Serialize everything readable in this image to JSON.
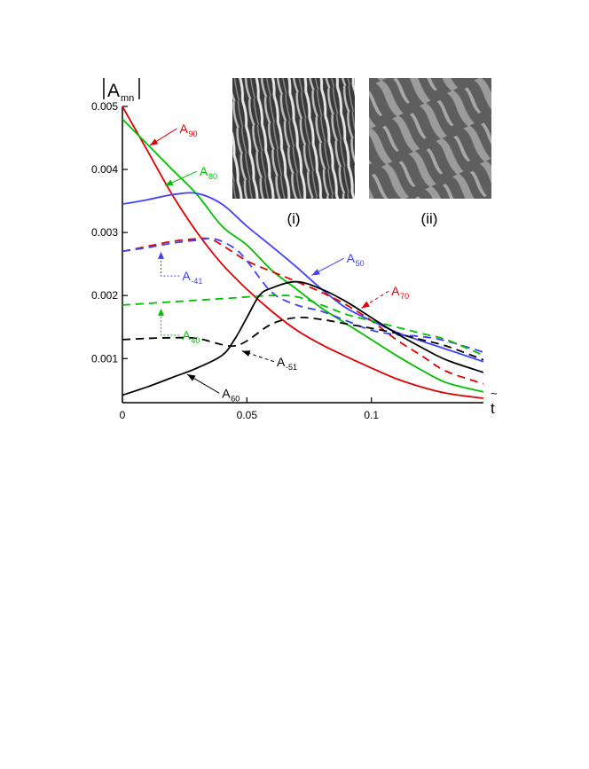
{
  "chart_data": {
    "type": "line",
    "ylabel_main": "A",
    "ylabel_sub": "mn",
    "xlabel_main": "t",
    "xlabel_accent": "~",
    "xlim": [
      0,
      0.145
    ],
    "ylim": [
      0.0003,
      0.005
    ],
    "xticks": [
      {
        "value": 0,
        "label": "0"
      },
      {
        "value": 0.05,
        "label": "0.05"
      },
      {
        "value": 0.1,
        "label": "0.1"
      }
    ],
    "yticks": [
      {
        "value": 0.001,
        "label": "0.001"
      },
      {
        "value": 0.002,
        "label": "0.002"
      },
      {
        "value": 0.003,
        "label": "0.003"
      },
      {
        "value": 0.004,
        "label": "0.004"
      },
      {
        "value": 0.005,
        "label": "0.005"
      }
    ],
    "series": [
      {
        "id": "a90-red",
        "color": "#e00000",
        "dash": "solid",
        "points": [
          [
            0,
            0.005
          ],
          [
            0.01,
            0.0043
          ],
          [
            0.02,
            0.0036
          ],
          [
            0.03,
            0.003
          ],
          [
            0.04,
            0.0025
          ],
          [
            0.05,
            0.0021
          ],
          [
            0.06,
            0.00175
          ],
          [
            0.07,
            0.00145
          ],
          [
            0.08,
            0.00122
          ],
          [
            0.09,
            0.00103
          ],
          [
            0.1,
            0.00085
          ],
          [
            0.11,
            0.00068
          ],
          [
            0.12,
            0.00055
          ],
          [
            0.13,
            0.00045
          ],
          [
            0.145,
            0.00037
          ]
        ]
      },
      {
        "id": "a80-green",
        "color": "#00c000",
        "dash": "solid",
        "points": [
          [
            0,
            0.0048
          ],
          [
            0.01,
            0.0044
          ],
          [
            0.02,
            0.004
          ],
          [
            0.03,
            0.0036
          ],
          [
            0.04,
            0.0031
          ],
          [
            0.05,
            0.0028
          ],
          [
            0.06,
            0.0024
          ],
          [
            0.07,
            0.0021
          ],
          [
            0.08,
            0.0018
          ],
          [
            0.09,
            0.00155
          ],
          [
            0.1,
            0.0013
          ],
          [
            0.11,
            0.00105
          ],
          [
            0.12,
            0.00082
          ],
          [
            0.13,
            0.00062
          ],
          [
            0.145,
            0.00047
          ]
        ]
      },
      {
        "id": "a50-blue",
        "color": "#4040ff",
        "dash": "solid",
        "points": [
          [
            0,
            0.00345
          ],
          [
            0.01,
            0.00352
          ],
          [
            0.02,
            0.0036
          ],
          [
            0.03,
            0.00362
          ],
          [
            0.04,
            0.00345
          ],
          [
            0.05,
            0.0031
          ],
          [
            0.06,
            0.00278
          ],
          [
            0.07,
            0.00245
          ],
          [
            0.08,
            0.0021
          ],
          [
            0.09,
            0.0018
          ],
          [
            0.1,
            0.0016
          ],
          [
            0.11,
            0.00142
          ],
          [
            0.12,
            0.00128
          ],
          [
            0.13,
            0.00115
          ],
          [
            0.145,
            0.00095
          ]
        ]
      },
      {
        "id": "a70-red-dashed",
        "color": "#e00000",
        "dash": "dashed",
        "points": [
          [
            0,
            0.0027
          ],
          [
            0.01,
            0.00278
          ],
          [
            0.02,
            0.00286
          ],
          [
            0.03,
            0.0029
          ],
          [
            0.035,
            0.0029
          ],
          [
            0.04,
            0.0028
          ],
          [
            0.05,
            0.00255
          ],
          [
            0.06,
            0.00238
          ],
          [
            0.07,
            0.00222
          ],
          [
            0.08,
            0.00205
          ],
          [
            0.09,
            0.00185
          ],
          [
            0.1,
            0.0016
          ],
          [
            0.11,
            0.0013
          ],
          [
            0.12,
            0.00105
          ],
          [
            0.13,
            0.0008
          ],
          [
            0.145,
            0.0006
          ]
        ]
      },
      {
        "id": "a41-blue-dashed",
        "color": "#4040ff",
        "dash": "dashed",
        "points": [
          [
            0,
            0.0027
          ],
          [
            0.01,
            0.00276
          ],
          [
            0.02,
            0.00283
          ],
          [
            0.03,
            0.00288
          ],
          [
            0.037,
            0.0029
          ],
          [
            0.045,
            0.00275
          ],
          [
            0.05,
            0.00255
          ],
          [
            0.06,
            0.00205
          ],
          [
            0.07,
            0.00185
          ],
          [
            0.08,
            0.00175
          ],
          [
            0.09,
            0.0016
          ],
          [
            0.1,
            0.00145
          ],
          [
            0.11,
            0.00138
          ],
          [
            0.12,
            0.00135
          ],
          [
            0.13,
            0.00128
          ],
          [
            0.145,
            0.0011
          ]
        ]
      },
      {
        "id": "a40-green-dashed",
        "color": "#00c000",
        "dash": "dashed",
        "points": [
          [
            0,
            0.00185
          ],
          [
            0.02,
            0.0019
          ],
          [
            0.04,
            0.00195
          ],
          [
            0.06,
            0.002
          ],
          [
            0.07,
            0.00198
          ],
          [
            0.08,
            0.00185
          ],
          [
            0.09,
            0.0017
          ],
          [
            0.1,
            0.0016
          ],
          [
            0.11,
            0.0015
          ],
          [
            0.12,
            0.0014
          ],
          [
            0.13,
            0.0013
          ],
          [
            0.145,
            0.00105
          ]
        ]
      },
      {
        "id": "a51-black-dashed",
        "color": "#000000",
        "dash": "dashed",
        "points": [
          [
            0,
            0.0013
          ],
          [
            0.01,
            0.00132
          ],
          [
            0.02,
            0.00133
          ],
          [
            0.03,
            0.00132
          ],
          [
            0.04,
            0.00122
          ],
          [
            0.045,
            0.0012
          ],
          [
            0.05,
            0.00128
          ],
          [
            0.06,
            0.00155
          ],
          [
            0.07,
            0.00165
          ],
          [
            0.08,
            0.00162
          ],
          [
            0.09,
            0.00155
          ],
          [
            0.1,
            0.00148
          ],
          [
            0.11,
            0.0014
          ],
          [
            0.12,
            0.0013
          ],
          [
            0.13,
            0.0012
          ],
          [
            0.145,
            0.00098
          ]
        ]
      },
      {
        "id": "a60-black",
        "color": "#000000",
        "dash": "solid",
        "points": [
          [
            0,
            0.00042
          ],
          [
            0.01,
            0.00055
          ],
          [
            0.02,
            0.0007
          ],
          [
            0.03,
            0.00085
          ],
          [
            0.04,
            0.00105
          ],
          [
            0.045,
            0.0013
          ],
          [
            0.05,
            0.00165
          ],
          [
            0.055,
            0.002
          ],
          [
            0.06,
            0.00212
          ],
          [
            0.07,
            0.00222
          ],
          [
            0.08,
            0.0021
          ],
          [
            0.09,
            0.0019
          ],
          [
            0.1,
            0.00165
          ],
          [
            0.11,
            0.0014
          ],
          [
            0.12,
            0.00118
          ],
          [
            0.13,
            0.00098
          ],
          [
            0.145,
            0.00078
          ]
        ]
      }
    ],
    "annotations": [
      {
        "id": "a90",
        "main": "A",
        "sub": "90",
        "color": "#e00000",
        "text_at": [
          0.023,
          0.00458
        ],
        "arrow_to": [
          0.011,
          0.00438
        ],
        "arrow_style": "solid"
      },
      {
        "id": "a80",
        "main": "A",
        "sub": "80",
        "color": "#00c000",
        "text_at": [
          0.031,
          0.0039
        ],
        "arrow_to": [
          0.017,
          0.00374
        ],
        "arrow_style": "solid"
      },
      {
        "id": "a50",
        "main": "A",
        "sub": "50",
        "color": "#4040ff",
        "text_at": [
          0.09,
          0.00252
        ],
        "arrow_to": [
          0.076,
          0.00232
        ],
        "arrow_style": "solid"
      },
      {
        "id": "a41",
        "main": "A",
        "sub": "-41",
        "color": "#4040ff",
        "text_at": [
          0.024,
          0.00224
        ],
        "arrow_to": [
          0.0155,
          0.00268
        ],
        "arrow_style": "dotted"
      },
      {
        "id": "a70",
        "main": "A",
        "sub": "70",
        "color": "#e00000",
        "text_at": [
          0.108,
          0.002
        ],
        "arrow_to": [
          0.096,
          0.0018
        ],
        "arrow_style": "dashed"
      },
      {
        "id": "a40",
        "main": "A",
        "sub": "40",
        "color": "#00c000",
        "text_at": [
          0.024,
          0.0013
        ],
        "arrow_to": [
          0.0155,
          0.00178
        ],
        "arrow_style": "dotted"
      },
      {
        "id": "a51",
        "main": "A",
        "sub": "-51",
        "color": "#000000",
        "text_at": [
          0.062,
          0.00088
        ],
        "arrow_to": [
          0.048,
          0.00112
        ],
        "arrow_style": "dashed"
      },
      {
        "id": "a60",
        "main": "A",
        "sub": "60",
        "color": "#000000",
        "text_at": [
          0.04,
          0.00038
        ],
        "arrow_to": [
          0.026,
          0.00075
        ],
        "arrow_style": "solid"
      }
    ],
    "inset_labels": [
      "(i)",
      "(ii)"
    ]
  }
}
